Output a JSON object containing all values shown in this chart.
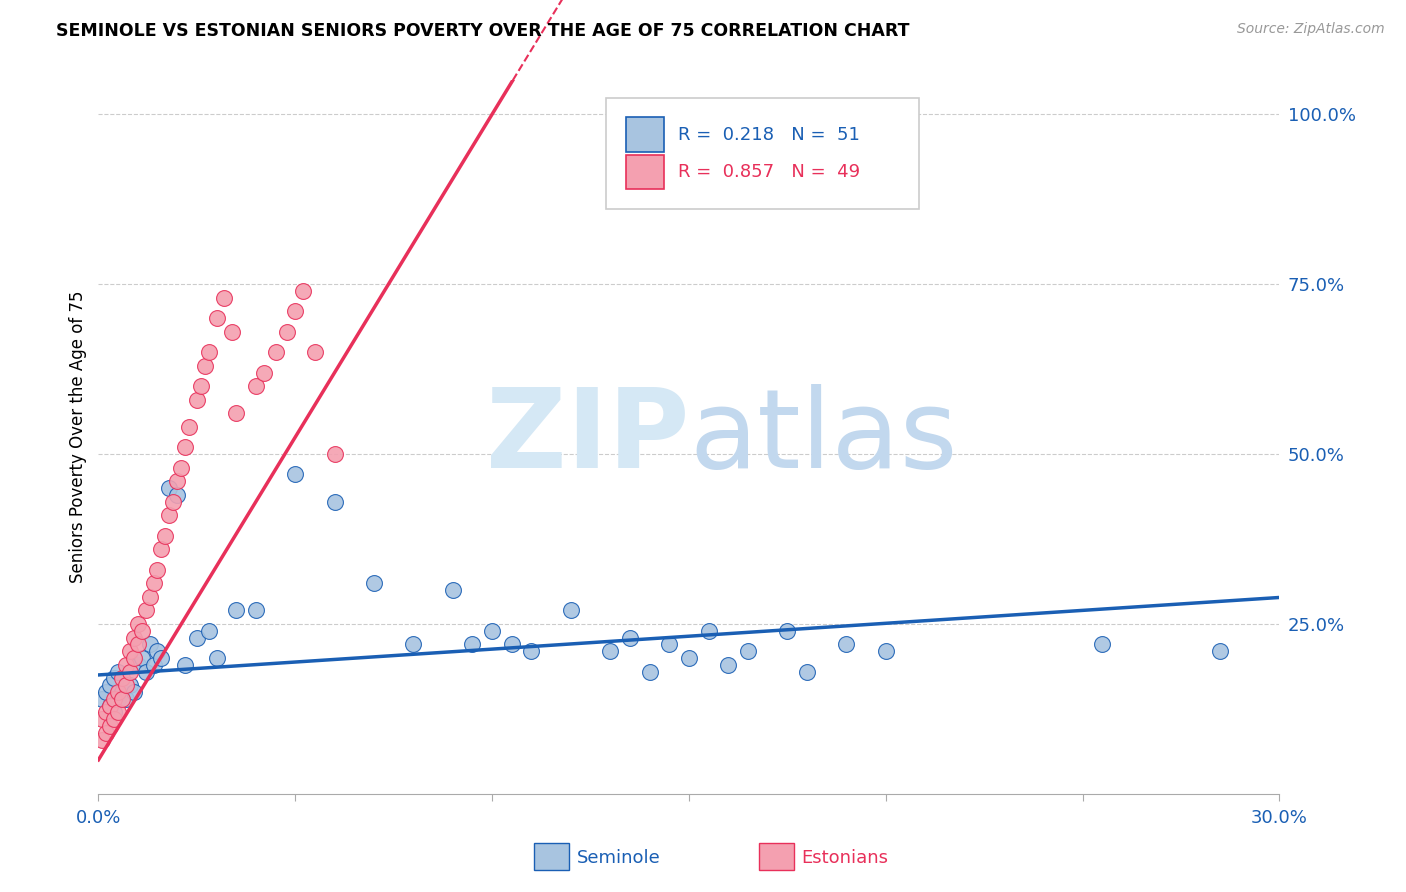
{
  "title": "SEMINOLE VS ESTONIAN SENIORS POVERTY OVER THE AGE OF 75 CORRELATION CHART",
  "source_text": "Source: ZipAtlas.com",
  "ylabel": "Seniors Poverty Over the Age of 75",
  "xlim": [
    0.0,
    0.3
  ],
  "ylim": [
    0.0,
    1.05
  ],
  "yticks": [
    0.0,
    0.25,
    0.5,
    0.75,
    1.0
  ],
  "ytick_labels": [
    "",
    "25.0%",
    "50.0%",
    "75.0%",
    "100.0%"
  ],
  "xtick_vals": [
    0.0,
    0.05,
    0.1,
    0.15,
    0.2,
    0.25,
    0.3
  ],
  "xtick_labels": [
    "0.0%",
    "",
    "",
    "",
    "",
    "",
    "30.0%"
  ],
  "seminole_color": "#a8c4e0",
  "estonian_color": "#f4a0b0",
  "trend_blue": "#1a5fb4",
  "trend_pink": "#e8305a",
  "R_seminole": 0.218,
  "N_seminole": 51,
  "R_estonian": 0.857,
  "N_estonian": 49,
  "seminole_x": [
    0.001,
    0.002,
    0.003,
    0.003,
    0.004,
    0.004,
    0.005,
    0.005,
    0.006,
    0.007,
    0.008,
    0.009,
    0.01,
    0.011,
    0.012,
    0.013,
    0.014,
    0.015,
    0.016,
    0.018,
    0.02,
    0.022,
    0.025,
    0.028,
    0.03,
    0.035,
    0.04,
    0.05,
    0.06,
    0.07,
    0.08,
    0.09,
    0.095,
    0.1,
    0.105,
    0.11,
    0.12,
    0.13,
    0.135,
    0.14,
    0.145,
    0.15,
    0.155,
    0.16,
    0.165,
    0.175,
    0.18,
    0.19,
    0.2,
    0.255,
    0.285
  ],
  "seminole_y": [
    0.14,
    0.15,
    0.13,
    0.16,
    0.12,
    0.17,
    0.14,
    0.18,
    0.15,
    0.14,
    0.16,
    0.15,
    0.19,
    0.2,
    0.18,
    0.22,
    0.19,
    0.21,
    0.2,
    0.45,
    0.44,
    0.19,
    0.23,
    0.24,
    0.2,
    0.27,
    0.27,
    0.47,
    0.43,
    0.31,
    0.22,
    0.3,
    0.22,
    0.24,
    0.22,
    0.21,
    0.27,
    0.21,
    0.23,
    0.18,
    0.22,
    0.2,
    0.24,
    0.19,
    0.21,
    0.24,
    0.18,
    0.22,
    0.21,
    0.22,
    0.21
  ],
  "estonian_x": [
    0.001,
    0.001,
    0.002,
    0.002,
    0.003,
    0.003,
    0.004,
    0.004,
    0.005,
    0.005,
    0.006,
    0.006,
    0.007,
    0.007,
    0.008,
    0.008,
    0.009,
    0.009,
    0.01,
    0.01,
    0.011,
    0.012,
    0.013,
    0.014,
    0.015,
    0.016,
    0.017,
    0.018,
    0.019,
    0.02,
    0.021,
    0.022,
    0.023,
    0.025,
    0.026,
    0.027,
    0.028,
    0.03,
    0.032,
    0.034,
    0.035,
    0.04,
    0.042,
    0.045,
    0.048,
    0.05,
    0.052,
    0.055,
    0.06
  ],
  "estonian_y": [
    0.08,
    0.11,
    0.09,
    0.12,
    0.1,
    0.13,
    0.11,
    0.14,
    0.12,
    0.15,
    0.14,
    0.17,
    0.16,
    0.19,
    0.18,
    0.21,
    0.2,
    0.23,
    0.22,
    0.25,
    0.24,
    0.27,
    0.29,
    0.31,
    0.33,
    0.36,
    0.38,
    0.41,
    0.43,
    0.46,
    0.48,
    0.51,
    0.54,
    0.58,
    0.6,
    0.63,
    0.65,
    0.7,
    0.73,
    0.68,
    0.56,
    0.6,
    0.62,
    0.65,
    0.68,
    0.71,
    0.74,
    0.65,
    0.5
  ]
}
